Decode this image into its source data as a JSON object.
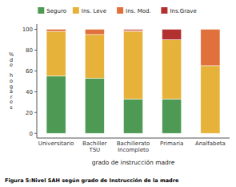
{
  "chart_data": {
    "type": "bar",
    "stacked": true,
    "categories": [
      "Universitario",
      "Bachiller\nTSU",
      "Bachillerato\nIncompleto",
      "Primaria",
      "Analfabeta"
    ],
    "series": [
      {
        "name": "Seguro",
        "color": "#4e9a55",
        "values": [
          55,
          53,
          33,
          33,
          0
        ]
      },
      {
        "name": "Ins. Leve",
        "color": "#e6b23a",
        "values": [
          43,
          42,
          65,
          57,
          65
        ]
      },
      {
        "name": "Ins. Mod.",
        "color": "#e0703c",
        "values": [
          2,
          5,
          1,
          0,
          35
        ]
      },
      {
        "name": "Ins.Grave",
        "color": "#b23030",
        "values": [
          0,
          0,
          1,
          10,
          0
        ]
      }
    ],
    "x_label": "grado de instrucción madre",
    "y_label": "%\nd\ne\n \nh\no\ng\na\nr\ne\ns",
    "annotations": [
      "Figura 5:Nivel SAH según grado de Instrucción de la madre"
    ],
    "ylim": [
      -4.5,
      105
    ],
    "yticks": [
      0,
      20,
      40,
      60,
      80,
      100
    ],
    "grid": false,
    "legend": "top"
  }
}
